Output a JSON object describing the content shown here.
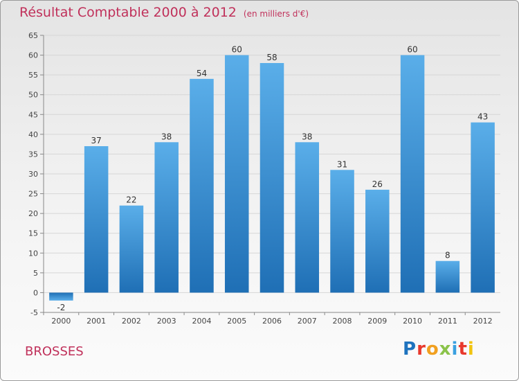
{
  "header": {
    "title": "Résultat Comptable 2000 à 2012",
    "subtitle": "(en milliers d'€)"
  },
  "footer": {
    "commune": "BROSSES",
    "logo_text": "Proxiti",
    "logo_colors": [
      "#1e73be",
      "#e8382c",
      "#f1a020",
      "#8bc34a",
      "#3aa0e0",
      "#e8382c",
      "#f1c40f"
    ]
  },
  "chart_data": {
    "type": "bar",
    "categories": [
      "2000",
      "2001",
      "2002",
      "2003",
      "2004",
      "2005",
      "2006",
      "2007",
      "2008",
      "2009",
      "2010",
      "2011",
      "2012"
    ],
    "values": [
      -2,
      37,
      22,
      38,
      54,
      60,
      58,
      38,
      31,
      26,
      60,
      8,
      43
    ],
    "data_labels": [
      "-2",
      "37",
      "22",
      "38",
      "54",
      "60",
      "58",
      "38",
      "31",
      "26",
      "60",
      "8",
      "43"
    ],
    "y_ticks": [
      "-5",
      "0",
      "5",
      "10",
      "15",
      "20",
      "25",
      "30",
      "35",
      "40",
      "45",
      "50",
      "55",
      "60",
      "65"
    ],
    "ylim": [
      -5,
      65
    ],
    "grid": true,
    "bar_color": "#3d93d8"
  }
}
